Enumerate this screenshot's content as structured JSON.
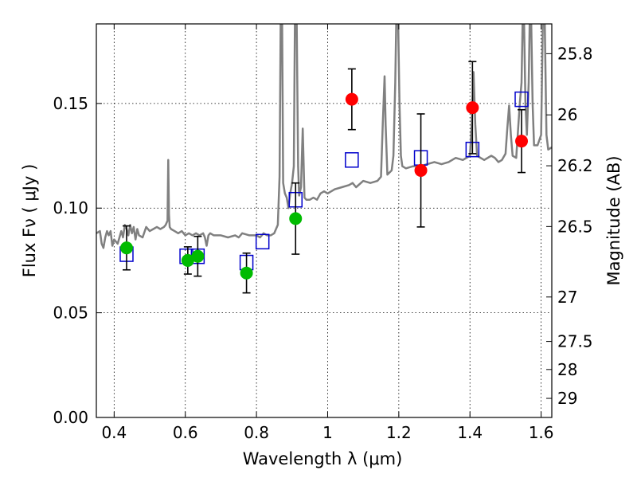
{
  "chart_data": {
    "type": "scatter",
    "title": "",
    "xlabel": "Wavelength  λ (μm)",
    "ylabel": "Flux  Fν  ( μJy )",
    "y2label": "Magnitude (AB)",
    "xlim": [
      0.35,
      1.63
    ],
    "ylim": [
      0.0,
      0.188
    ],
    "xticks": [
      0.4,
      0.6,
      0.8,
      1.0,
      1.2,
      1.4,
      1.6
    ],
    "xtick_labels": [
      "0.4",
      "0.6",
      "0.8",
      "1",
      "1.2",
      "1.4",
      "1.6"
    ],
    "yticks": [
      0.0,
      0.05,
      0.1,
      0.15
    ],
    "ytick_labels": [
      "0.00",
      "0.05",
      "0.10",
      "0.15"
    ],
    "y2ticks": [
      {
        "label": "25.8",
        "value": 25.8
      },
      {
        "label": "26",
        "value": 26.0
      },
      {
        "label": "26.2",
        "value": 26.2
      },
      {
        "label": "26.5",
        "value": 26.5
      },
      {
        "label": "27",
        "value": 27.0
      },
      {
        "label": "27.5",
        "value": 27.5
      },
      {
        "label": "28",
        "value": 28.0
      },
      {
        "label": "29",
        "value": 29.0
      }
    ],
    "grid": true,
    "colors": {
      "model": "#808080",
      "green": "#00bb00",
      "red": "#ff0000",
      "square": "#0000cc",
      "errorbar": "#000000"
    },
    "series": [
      {
        "kind": "line",
        "points": [
          [
            0.35,
            0.088
          ],
          [
            0.36,
            0.089
          ],
          [
            0.365,
            0.083
          ],
          [
            0.37,
            0.081
          ],
          [
            0.375,
            0.086
          ],
          [
            0.38,
            0.089
          ],
          [
            0.385,
            0.087
          ],
          [
            0.39,
            0.089
          ],
          [
            0.395,
            0.082
          ],
          [
            0.4,
            0.085
          ],
          [
            0.41,
            0.083
          ],
          [
            0.42,
            0.089
          ],
          [
            0.425,
            0.086
          ],
          [
            0.43,
            0.092
          ],
          [
            0.435,
            0.09
          ],
          [
            0.44,
            0.087
          ],
          [
            0.445,
            0.092
          ],
          [
            0.45,
            0.088
          ],
          [
            0.455,
            0.091
          ],
          [
            0.46,
            0.085
          ],
          [
            0.465,
            0.09
          ],
          [
            0.47,
            0.087
          ],
          [
            0.48,
            0.086
          ],
          [
            0.49,
            0.091
          ],
          [
            0.5,
            0.089
          ],
          [
            0.51,
            0.09
          ],
          [
            0.52,
            0.091
          ],
          [
            0.53,
            0.09
          ],
          [
            0.54,
            0.091
          ],
          [
            0.545,
            0.092
          ],
          [
            0.55,
            0.094
          ],
          [
            0.552,
            0.123
          ],
          [
            0.554,
            0.097
          ],
          [
            0.556,
            0.091
          ],
          [
            0.56,
            0.09
          ],
          [
            0.57,
            0.089
          ],
          [
            0.58,
            0.088
          ],
          [
            0.59,
            0.089
          ],
          [
            0.6,
            0.087
          ],
          [
            0.61,
            0.088
          ],
          [
            0.62,
            0.087
          ],
          [
            0.63,
            0.088
          ],
          [
            0.64,
            0.087
          ],
          [
            0.65,
            0.088
          ],
          [
            0.655,
            0.086
          ],
          [
            0.66,
            0.082
          ],
          [
            0.665,
            0.087
          ],
          [
            0.67,
            0.088
          ],
          [
            0.68,
            0.087
          ],
          [
            0.7,
            0.087
          ],
          [
            0.72,
            0.086
          ],
          [
            0.74,
            0.087
          ],
          [
            0.75,
            0.086
          ],
          [
            0.76,
            0.088
          ],
          [
            0.78,
            0.087
          ],
          [
            0.8,
            0.087
          ],
          [
            0.81,
            0.086
          ],
          [
            0.82,
            0.088
          ],
          [
            0.83,
            0.087
          ],
          [
            0.84,
            0.087
          ],
          [
            0.85,
            0.088
          ],
          [
            0.86,
            0.092
          ],
          [
            0.865,
            0.115
          ],
          [
            0.868,
            0.19
          ],
          [
            0.872,
            0.19
          ],
          [
            0.875,
            0.112
          ],
          [
            0.88,
            0.107
          ],
          [
            0.885,
            0.105
          ],
          [
            0.89,
            0.1
          ],
          [
            0.895,
            0.107
          ],
          [
            0.9,
            0.112
          ],
          [
            0.905,
            0.12
          ],
          [
            0.908,
            0.19
          ],
          [
            0.913,
            0.19
          ],
          [
            0.917,
            0.12
          ],
          [
            0.92,
            0.106
          ],
          [
            0.925,
            0.11
          ],
          [
            0.93,
            0.138
          ],
          [
            0.935,
            0.105
          ],
          [
            0.94,
            0.104
          ],
          [
            0.95,
            0.104
          ],
          [
            0.96,
            0.105
          ],
          [
            0.97,
            0.104
          ],
          [
            0.98,
            0.107
          ],
          [
            0.99,
            0.108
          ],
          [
            1.0,
            0.107
          ],
          [
            1.02,
            0.109
          ],
          [
            1.04,
            0.11
          ],
          [
            1.06,
            0.111
          ],
          [
            1.07,
            0.112
          ],
          [
            1.08,
            0.11
          ],
          [
            1.1,
            0.113
          ],
          [
            1.12,
            0.112
          ],
          [
            1.14,
            0.113
          ],
          [
            1.15,
            0.115
          ],
          [
            1.155,
            0.14
          ],
          [
            1.16,
            0.163
          ],
          [
            1.163,
            0.14
          ],
          [
            1.168,
            0.116
          ],
          [
            1.18,
            0.118
          ],
          [
            1.185,
            0.125
          ],
          [
            1.19,
            0.16
          ],
          [
            1.193,
            0.19
          ],
          [
            1.198,
            0.19
          ],
          [
            1.202,
            0.15
          ],
          [
            1.206,
            0.125
          ],
          [
            1.21,
            0.12
          ],
          [
            1.22,
            0.119
          ],
          [
            1.24,
            0.12
          ],
          [
            1.26,
            0.12
          ],
          [
            1.28,
            0.121
          ],
          [
            1.3,
            0.122
          ],
          [
            1.32,
            0.121
          ],
          [
            1.34,
            0.122
          ],
          [
            1.36,
            0.124
          ],
          [
            1.38,
            0.123
          ],
          [
            1.4,
            0.125
          ],
          [
            1.405,
            0.14
          ],
          [
            1.41,
            0.165
          ],
          [
            1.415,
            0.14
          ],
          [
            1.42,
            0.125
          ],
          [
            1.43,
            0.124
          ],
          [
            1.44,
            0.123
          ],
          [
            1.46,
            0.125
          ],
          [
            1.47,
            0.124
          ],
          [
            1.48,
            0.122
          ],
          [
            1.49,
            0.123
          ],
          [
            1.5,
            0.126
          ],
          [
            1.505,
            0.138
          ],
          [
            1.51,
            0.149
          ],
          [
            1.515,
            0.135
          ],
          [
            1.52,
            0.125
          ],
          [
            1.53,
            0.124
          ],
          [
            1.54,
            0.15
          ],
          [
            1.545,
            0.16
          ],
          [
            1.548,
            0.19
          ],
          [
            1.552,
            0.19
          ],
          [
            1.556,
            0.15
          ],
          [
            1.56,
            0.135
          ],
          [
            1.565,
            0.16
          ],
          [
            1.568,
            0.19
          ],
          [
            1.572,
            0.19
          ],
          [
            1.576,
            0.15
          ],
          [
            1.58,
            0.13
          ],
          [
            1.59,
            0.13
          ],
          [
            1.6,
            0.135
          ],
          [
            1.605,
            0.19
          ],
          [
            1.61,
            0.19
          ],
          [
            1.615,
            0.135
          ],
          [
            1.62,
            0.128
          ],
          [
            1.63,
            0.129
          ]
        ]
      },
      {
        "kind": "squares",
        "points": [
          [
            0.435,
            0.078
          ],
          [
            0.603,
            0.077
          ],
          [
            0.635,
            0.077
          ],
          [
            0.772,
            0.074
          ],
          [
            0.817,
            0.084
          ],
          [
            0.91,
            0.104
          ],
          [
            1.068,
            0.123
          ],
          [
            1.262,
            0.124
          ],
          [
            1.407,
            0.128
          ],
          [
            1.545,
            0.152
          ]
        ]
      },
      {
        "kind": "green-points",
        "points": [
          {
            "x": 0.435,
            "y": 0.081,
            "err": 0.0105
          },
          {
            "x": 0.607,
            "y": 0.075,
            "err": 0.0065
          },
          {
            "x": 0.635,
            "y": 0.077,
            "err": 0.0095
          },
          {
            "x": 0.772,
            "y": 0.069,
            "err": 0.0095
          },
          {
            "x": 0.91,
            "y": 0.095,
            "err": 0.017
          }
        ]
      },
      {
        "kind": "red-points",
        "points": [
          {
            "x": 1.068,
            "y": 0.152,
            "err": 0.0145
          },
          {
            "x": 1.262,
            "y": 0.118,
            "err": 0.027
          },
          {
            "x": 1.407,
            "y": 0.148,
            "err": 0.022
          },
          {
            "x": 1.545,
            "y": 0.132,
            "err": 0.015
          }
        ]
      }
    ]
  }
}
